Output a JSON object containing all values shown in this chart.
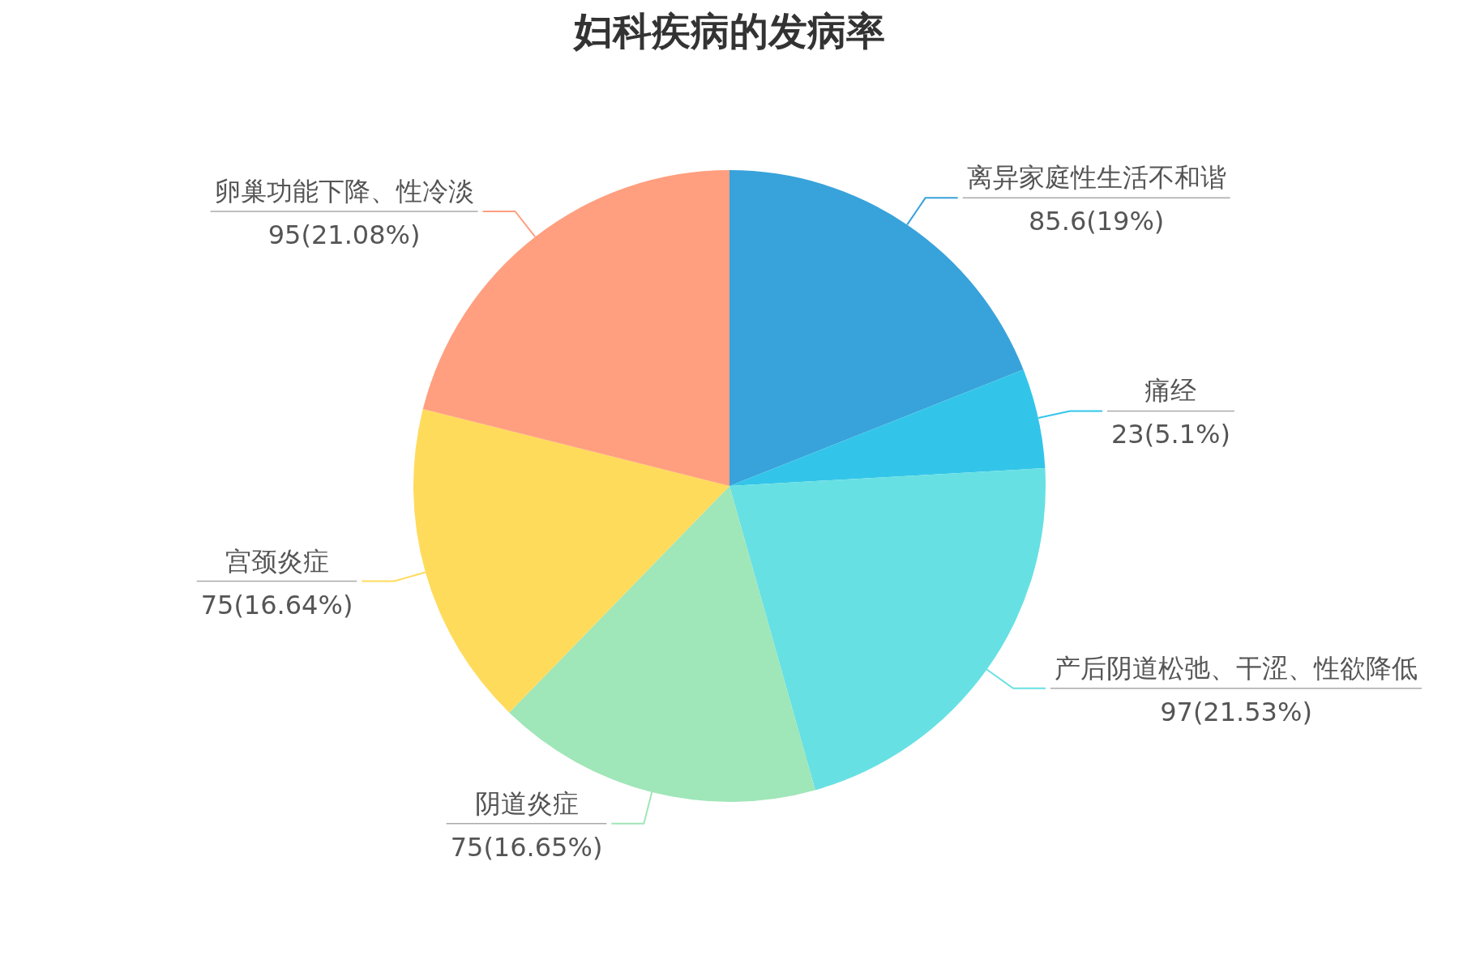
{
  "chart_data": {
    "type": "pie",
    "title": "妇科疾病的发病率",
    "categories": [
      "离异家庭性生活不和谐",
      "痛经",
      "产后阴道松弛、干涩、性欲降低",
      "阴道炎症",
      "宫颈炎症",
      "卵巢功能下降、性冷淡"
    ],
    "values": [
      85.6,
      23,
      97,
      75,
      75,
      95
    ],
    "colors": [
      "#38a2da",
      "#32c5e9",
      "#67e0e3",
      "#9fe6b8",
      "#ffdb5c",
      "#ff9f7f"
    ],
    "value_labels": [
      "85.6(19%)",
      "23(5.1%)",
      "97(21.53%)",
      "75(16.65%)",
      "75(16.64%)",
      "95(21.08%)"
    ]
  }
}
